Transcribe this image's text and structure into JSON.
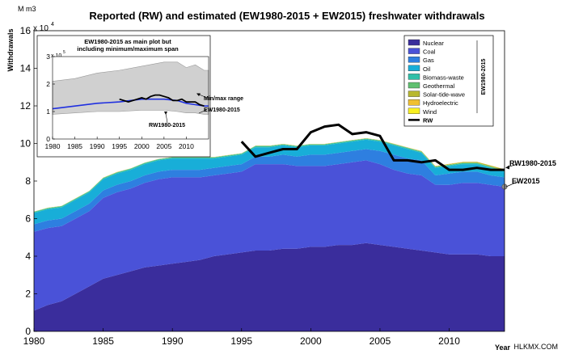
{
  "chart_data": {
    "type": "area",
    "title": "Reported (RW) and estimated (EW1980-2015 + EW2015) freshwater withdrawals",
    "ylabel": "Withdrawals",
    "y_unit": "M m3",
    "y_exponent": "x10^4",
    "y_exponent_base": "x 10",
    "y_exponent_power": "4",
    "xlabel": "Year",
    "xlim": [
      1980,
      2014
    ],
    "ylim": [
      0,
      16
    ],
    "x_ticks": [
      1980,
      1985,
      1990,
      1995,
      2000,
      2005,
      2010
    ],
    "y_ticks": [
      0,
      2,
      4,
      6,
      8,
      10,
      12,
      14,
      16
    ],
    "x": [
      1980,
      1981,
      1982,
      1983,
      1984,
      1985,
      1986,
      1987,
      1988,
      1989,
      1990,
      1991,
      1992,
      1993,
      1994,
      1995,
      1996,
      1997,
      1998,
      1999,
      2000,
      2001,
      2002,
      2003,
      2004,
      2005,
      2006,
      2007,
      2008,
      2009,
      2010,
      2011,
      2012,
      2013,
      2014
    ],
    "series_scale": "x10^4",
    "series": [
      {
        "name": "Nuclear",
        "color": "#3a2d9c",
        "values": [
          1.1,
          1.4,
          1.6,
          2.0,
          2.4,
          2.8,
          3.0,
          3.2,
          3.4,
          3.5,
          3.6,
          3.7,
          3.8,
          4.0,
          4.1,
          4.2,
          4.3,
          4.3,
          4.4,
          4.4,
          4.5,
          4.5,
          4.6,
          4.6,
          4.7,
          4.6,
          4.5,
          4.4,
          4.3,
          4.2,
          4.1,
          4.1,
          4.1,
          4.0,
          4.0
        ]
      },
      {
        "name": "Coal",
        "color": "#4a52d8",
        "values": [
          4.2,
          4.1,
          4.0,
          4.0,
          4.0,
          4.3,
          4.4,
          4.4,
          4.5,
          4.6,
          4.6,
          4.5,
          4.4,
          4.3,
          4.3,
          4.3,
          4.6,
          4.6,
          4.5,
          4.4,
          4.3,
          4.3,
          4.3,
          4.4,
          4.4,
          4.3,
          4.1,
          4.0,
          4.0,
          3.6,
          3.7,
          3.8,
          3.8,
          3.8,
          3.7
        ]
      },
      {
        "name": "Gas",
        "color": "#2e7fe0",
        "values": [
          0.4,
          0.4,
          0.4,
          0.4,
          0.4,
          0.4,
          0.4,
          0.4,
          0.4,
          0.4,
          0.4,
          0.4,
          0.4,
          0.4,
          0.4,
          0.4,
          0.4,
          0.4,
          0.5,
          0.5,
          0.6,
          0.6,
          0.6,
          0.6,
          0.6,
          0.7,
          0.8,
          0.8,
          0.8,
          0.5,
          0.6,
          0.6,
          0.6,
          0.5,
          0.5
        ]
      },
      {
        "name": "Oil",
        "color": "#18aed8",
        "values": [
          0.6,
          0.6,
          0.6,
          0.6,
          0.6,
          0.6,
          0.6,
          0.6,
          0.6,
          0.6,
          0.6,
          0.6,
          0.6,
          0.5,
          0.5,
          0.5,
          0.5,
          0.5,
          0.5,
          0.5,
          0.5,
          0.5,
          0.5,
          0.5,
          0.5,
          0.5,
          0.5,
          0.5,
          0.4,
          0.4,
          0.4,
          0.4,
          0.4,
          0.4,
          0.3
        ]
      },
      {
        "name": "Biomass-waste",
        "color": "#30c0a8",
        "values": [
          0.05,
          0.05,
          0.05,
          0.05,
          0.05,
          0.05,
          0.05,
          0.05,
          0.05,
          0.05,
          0.05,
          0.05,
          0.05,
          0.05,
          0.05,
          0.05,
          0.05,
          0.05,
          0.05,
          0.05,
          0.05,
          0.05,
          0.05,
          0.05,
          0.05,
          0.05,
          0.05,
          0.05,
          0.05,
          0.05,
          0.05,
          0.05,
          0.05,
          0.05,
          0.05
        ]
      },
      {
        "name": "Geothermal",
        "color": "#60c070",
        "values": [
          0.02,
          0.02,
          0.02,
          0.02,
          0.02,
          0.02,
          0.02,
          0.02,
          0.02,
          0.02,
          0.02,
          0.02,
          0.02,
          0.02,
          0.02,
          0.02,
          0.02,
          0.02,
          0.02,
          0.02,
          0.02,
          0.02,
          0.02,
          0.02,
          0.02,
          0.02,
          0.02,
          0.02,
          0.02,
          0.02,
          0.02,
          0.02,
          0.02,
          0.02,
          0.02
        ]
      },
      {
        "name": "Solar-tide-wave",
        "color": "#b8b830",
        "values": [
          0,
          0,
          0,
          0,
          0,
          0,
          0,
          0,
          0,
          0,
          0,
          0,
          0,
          0,
          0,
          0,
          0,
          0,
          0,
          0,
          0,
          0,
          0,
          0,
          0,
          0,
          0.01,
          0.01,
          0.02,
          0.02,
          0.03,
          0.04,
          0.05,
          0.05,
          0.05
        ]
      },
      {
        "name": "Hydroelectric",
        "color": "#f0c030",
        "values": [
          0.01,
          0.01,
          0.01,
          0.01,
          0.01,
          0.01,
          0.01,
          0.01,
          0.01,
          0.01,
          0.01,
          0.01,
          0.01,
          0.01,
          0.01,
          0.01,
          0.01,
          0.01,
          0.01,
          0.01,
          0.01,
          0.01,
          0.01,
          0.01,
          0.01,
          0.01,
          0.01,
          0.01,
          0.01,
          0.01,
          0.01,
          0.01,
          0.01,
          0.01,
          0.01
        ]
      },
      {
        "name": "Wind",
        "color": "#f8f020",
        "values": [
          0,
          0,
          0,
          0,
          0,
          0,
          0,
          0,
          0,
          0,
          0,
          0,
          0,
          0,
          0,
          0,
          0,
          0,
          0,
          0,
          0,
          0,
          0,
          0,
          0,
          0,
          0,
          0,
          0,
          0,
          0,
          0,
          0,
          0,
          0
        ]
      }
    ],
    "rw_line": {
      "name": "RW",
      "color": "#000000",
      "x": [
        1995,
        1996,
        1997,
        1998,
        1999,
        2000,
        2001,
        2002,
        2003,
        2004,
        2005,
        2006,
        2007,
        2008,
        2009,
        2010,
        2011,
        2012,
        2013,
        2014
      ],
      "values": [
        10.1,
        9.3,
        9.5,
        9.7,
        9.7,
        10.6,
        10.9,
        11.0,
        10.5,
        10.6,
        10.4,
        9.1,
        9.1,
        9.0,
        9.1,
        8.6,
        8.6,
        8.7,
        8.6,
        8.6
      ]
    },
    "ew2015_point": {
      "x": 2014,
      "value": 7.7,
      "color": "#909090"
    },
    "legend": {
      "position": "top-right",
      "group_label": "EW1980-2015",
      "entries": [
        "Nuclear",
        "Coal",
        "Gas",
        "Oil",
        "Biomass-waste",
        "Geothermal",
        "Solar-tide-wave",
        "Hydroelectric",
        "Wind",
        "RW"
      ]
    },
    "annotations": [
      "RW1980-2015",
      "EW2015"
    ],
    "inset": {
      "title_line1": "EW1980-2015 as main plot but",
      "title_line2": "including minimum/maximum span",
      "y_exponent_base": "x 10",
      "y_exponent_power": "5",
      "xlim": [
        1980,
        2015
      ],
      "ylim": [
        0,
        3
      ],
      "x_ticks": [
        1980,
        1985,
        1990,
        1995,
        2000,
        2005,
        2010
      ],
      "y_ticks": [
        0,
        1,
        2,
        3
      ],
      "x": [
        1980,
        1985,
        1990,
        1995,
        2000,
        2005,
        2008,
        2010,
        2012,
        2014,
        2015
      ],
      "range_min": [
        0.9,
        0.95,
        1.0,
        1.0,
        1.05,
        1.05,
        1.0,
        0.95,
        0.95,
        0.9,
        0.9
      ],
      "range_max": [
        2.1,
        2.2,
        2.4,
        2.5,
        2.65,
        2.8,
        2.8,
        2.6,
        2.7,
        2.5,
        2.5
      ],
      "ew_line": [
        1.1,
        1.2,
        1.3,
        1.35,
        1.45,
        1.45,
        1.4,
        1.3,
        1.25,
        1.2,
        1.2
      ],
      "rw_x": [
        1995,
        1997,
        1999,
        2000,
        2001,
        2002,
        2003,
        2004,
        2005,
        2006,
        2007,
        2008,
        2009,
        2010,
        2011,
        2012,
        2013,
        2014
      ],
      "rw_values": [
        1.45,
        1.35,
        1.45,
        1.5,
        1.45,
        1.55,
        1.6,
        1.6,
        1.55,
        1.5,
        1.4,
        1.4,
        1.45,
        1.35,
        1.35,
        1.35,
        1.25,
        1.2
      ],
      "range_color": "#d0d0d0",
      "ew_color": "#2030e0",
      "labels": {
        "range": "Min/max range",
        "ew": "EW1980-2015",
        "rw": "RW1980-2015"
      }
    }
  },
  "watermark": "HLKMX.COM"
}
